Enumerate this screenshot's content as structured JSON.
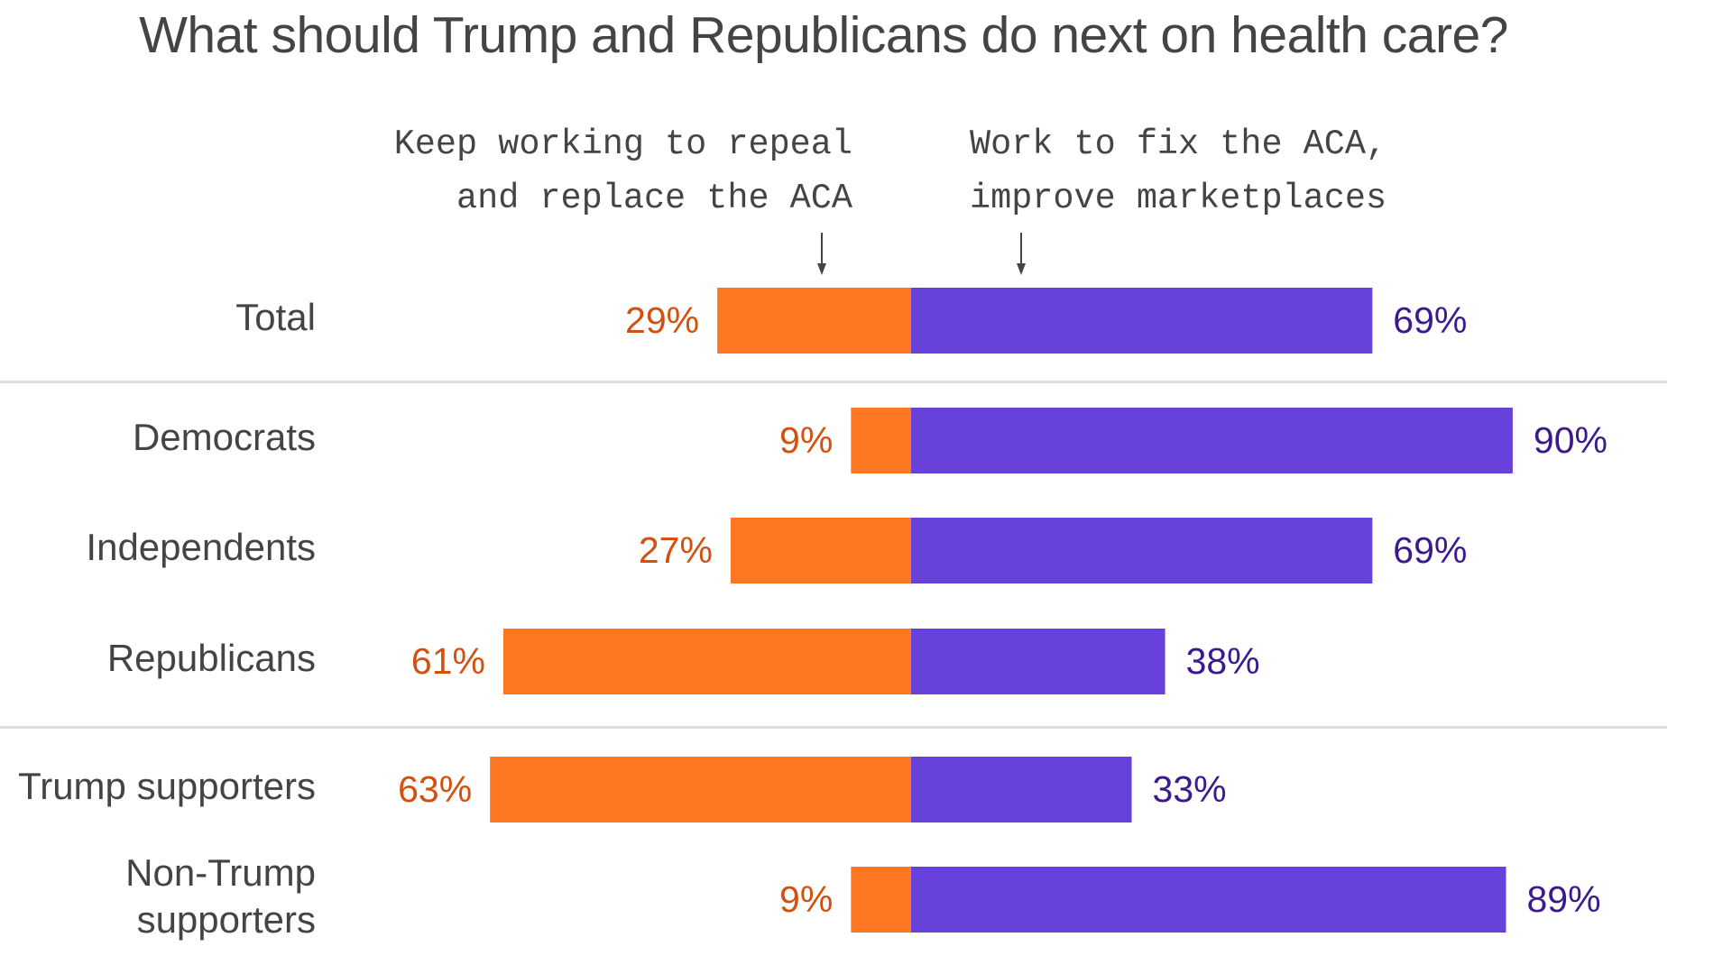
{
  "chart_data": {
    "type": "bar",
    "orientation": "horizontal-diverging",
    "title": "What should Trump and Republicans do next on health care?",
    "xlabel": "",
    "ylabel": "",
    "grid": false,
    "legend": "none",
    "xlim": [
      -70,
      100
    ],
    "unit": "%",
    "categories": [
      "Total",
      "Democrats",
      "Independents",
      "Republicans",
      "Trump supporters",
      "Non-Trump supporters"
    ],
    "category_display": [
      [
        "Total"
      ],
      [
        "Democrats"
      ],
      [
        "Independents"
      ],
      [
        "Republicans"
      ],
      [
        "Trump supporters"
      ],
      [
        "Non-Trump",
        "supporters"
      ]
    ],
    "groups": [
      [
        "Total"
      ],
      [
        "Democrats",
        "Independents",
        "Republicans"
      ],
      [
        "Trump supporters",
        "Non-Trump supporters"
      ]
    ],
    "series": [
      {
        "name": "Keep working to repeal and replace the ACA",
        "header_lines": [
          "Keep working to repeal",
          "and replace the ACA"
        ],
        "direction": "left",
        "color": "#FF7722",
        "label_color": "#D4500E",
        "values": [
          29,
          9,
          27,
          61,
          63,
          9
        ]
      },
      {
        "name": "Work to fix the ACA, improve marketplaces",
        "header_lines": [
          "Work to fix the ACA,",
          "improve marketplaces"
        ],
        "direction": "right",
        "color": "#6741D9",
        "label_color": "#3C1A8E",
        "values": [
          69,
          90,
          69,
          38,
          33,
          89
        ]
      }
    ]
  },
  "colors": {
    "title": "#444444",
    "text": "#444444",
    "divider": "#DDDDDD",
    "arrow": "#444444"
  }
}
